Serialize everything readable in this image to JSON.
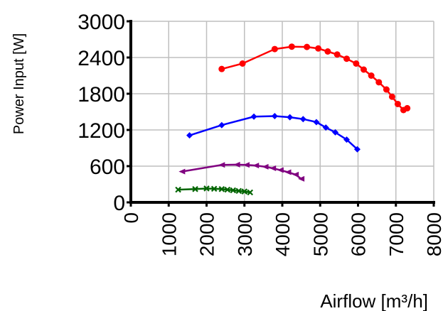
{
  "chart_data": {
    "type": "line",
    "title": "",
    "xlabel": "Airflow  [m³/h]",
    "ylabel": "Power Input [W]",
    "xlim": [
      0,
      8000
    ],
    "ylim": [
      0,
      3000
    ],
    "x_ticks": [
      0,
      1000,
      2000,
      3000,
      4000,
      5000,
      6000,
      7000,
      8000
    ],
    "y_ticks": [
      0,
      600,
      1200,
      1800,
      2400,
      3000
    ],
    "x_tick_labels": [
      "0",
      "1000",
      "2000",
      "3000",
      "4000",
      "5000",
      "6000",
      "7000",
      "8000"
    ],
    "y_tick_labels": [
      "0",
      "600",
      "1200",
      "1800",
      "2400",
      "3000"
    ],
    "grid": true,
    "legend": "none",
    "series": [
      {
        "color": "#ff0000",
        "marker": "circle",
        "points": [
          [
            2400,
            2210
          ],
          [
            2950,
            2300
          ],
          [
            3800,
            2540
          ],
          [
            4250,
            2580
          ],
          [
            4650,
            2575
          ],
          [
            4950,
            2550
          ],
          [
            5200,
            2500
          ],
          [
            5450,
            2450
          ],
          [
            5700,
            2380
          ],
          [
            5950,
            2300
          ],
          [
            6150,
            2200
          ],
          [
            6350,
            2100
          ],
          [
            6550,
            1990
          ],
          [
            6750,
            1870
          ],
          [
            6900,
            1750
          ],
          [
            7050,
            1630
          ],
          [
            7200,
            1530
          ],
          [
            7300,
            1560
          ]
        ]
      },
      {
        "color": "#0000ff",
        "marker": "diamond",
        "points": [
          [
            1550,
            1110
          ],
          [
            2400,
            1280
          ],
          [
            3250,
            1420
          ],
          [
            3800,
            1430
          ],
          [
            4200,
            1410
          ],
          [
            4550,
            1380
          ],
          [
            4900,
            1330
          ],
          [
            5150,
            1240
          ],
          [
            5400,
            1160
          ],
          [
            5700,
            1040
          ],
          [
            5980,
            880
          ]
        ]
      },
      {
        "color": "#800080",
        "marker": "triangle",
        "points": [
          [
            1350,
            510
          ],
          [
            2400,
            620
          ],
          [
            2800,
            625
          ],
          [
            3050,
            620
          ],
          [
            3300,
            610
          ],
          [
            3550,
            590
          ],
          [
            3750,
            565
          ],
          [
            3950,
            535
          ],
          [
            4150,
            500
          ],
          [
            4350,
            460
          ],
          [
            4500,
            390
          ]
        ]
      },
      {
        "color": "#006400",
        "marker": "x",
        "points": [
          [
            1250,
            210
          ],
          [
            1700,
            220
          ],
          [
            2000,
            230
          ],
          [
            2200,
            225
          ],
          [
            2400,
            220
          ],
          [
            2550,
            210
          ],
          [
            2700,
            200
          ],
          [
            2850,
            190
          ],
          [
            3000,
            180
          ],
          [
            3150,
            165
          ]
        ]
      }
    ]
  }
}
